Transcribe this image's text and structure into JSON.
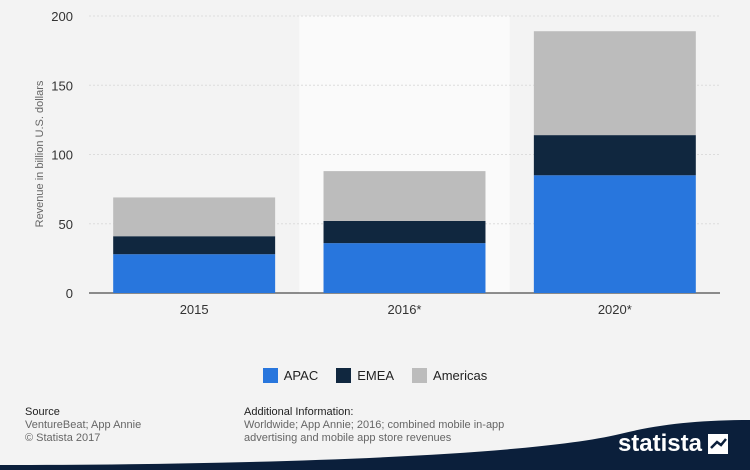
{
  "chart_data": {
    "type": "bar",
    "stacked": true,
    "categories": [
      "2015",
      "2016*",
      "2020*"
    ],
    "series": [
      {
        "name": "APAC",
        "values": [
          28,
          36,
          85
        ],
        "color": "#2876dd"
      },
      {
        "name": "EMEA",
        "values": [
          13,
          16,
          29
        ],
        "color": "#10273f"
      },
      {
        "name": "Americas",
        "values": [
          28,
          36,
          75
        ],
        "color": "#bcbcbc"
      }
    ],
    "ylabel": "Revenue in billion U.S. dollars",
    "xlabel": "",
    "ylim": [
      0,
      200
    ],
    "yticks": [
      "0",
      "50",
      "100",
      "150",
      "200"
    ],
    "grid": true,
    "highlighted_category": "2016*",
    "legend_position": "bottom-center"
  },
  "footer": {
    "source_label": "Source",
    "source_lines": [
      "VentureBeat; App Annie",
      "© Statista 2017"
    ],
    "info_label": "Additional Information:",
    "info_lines": [
      "Worldwide; App Annie; 2016; combined mobile in-app",
      "advertising and mobile app store revenues"
    ]
  },
  "brand": {
    "name": "statista",
    "color": "#0b1f3b"
  }
}
